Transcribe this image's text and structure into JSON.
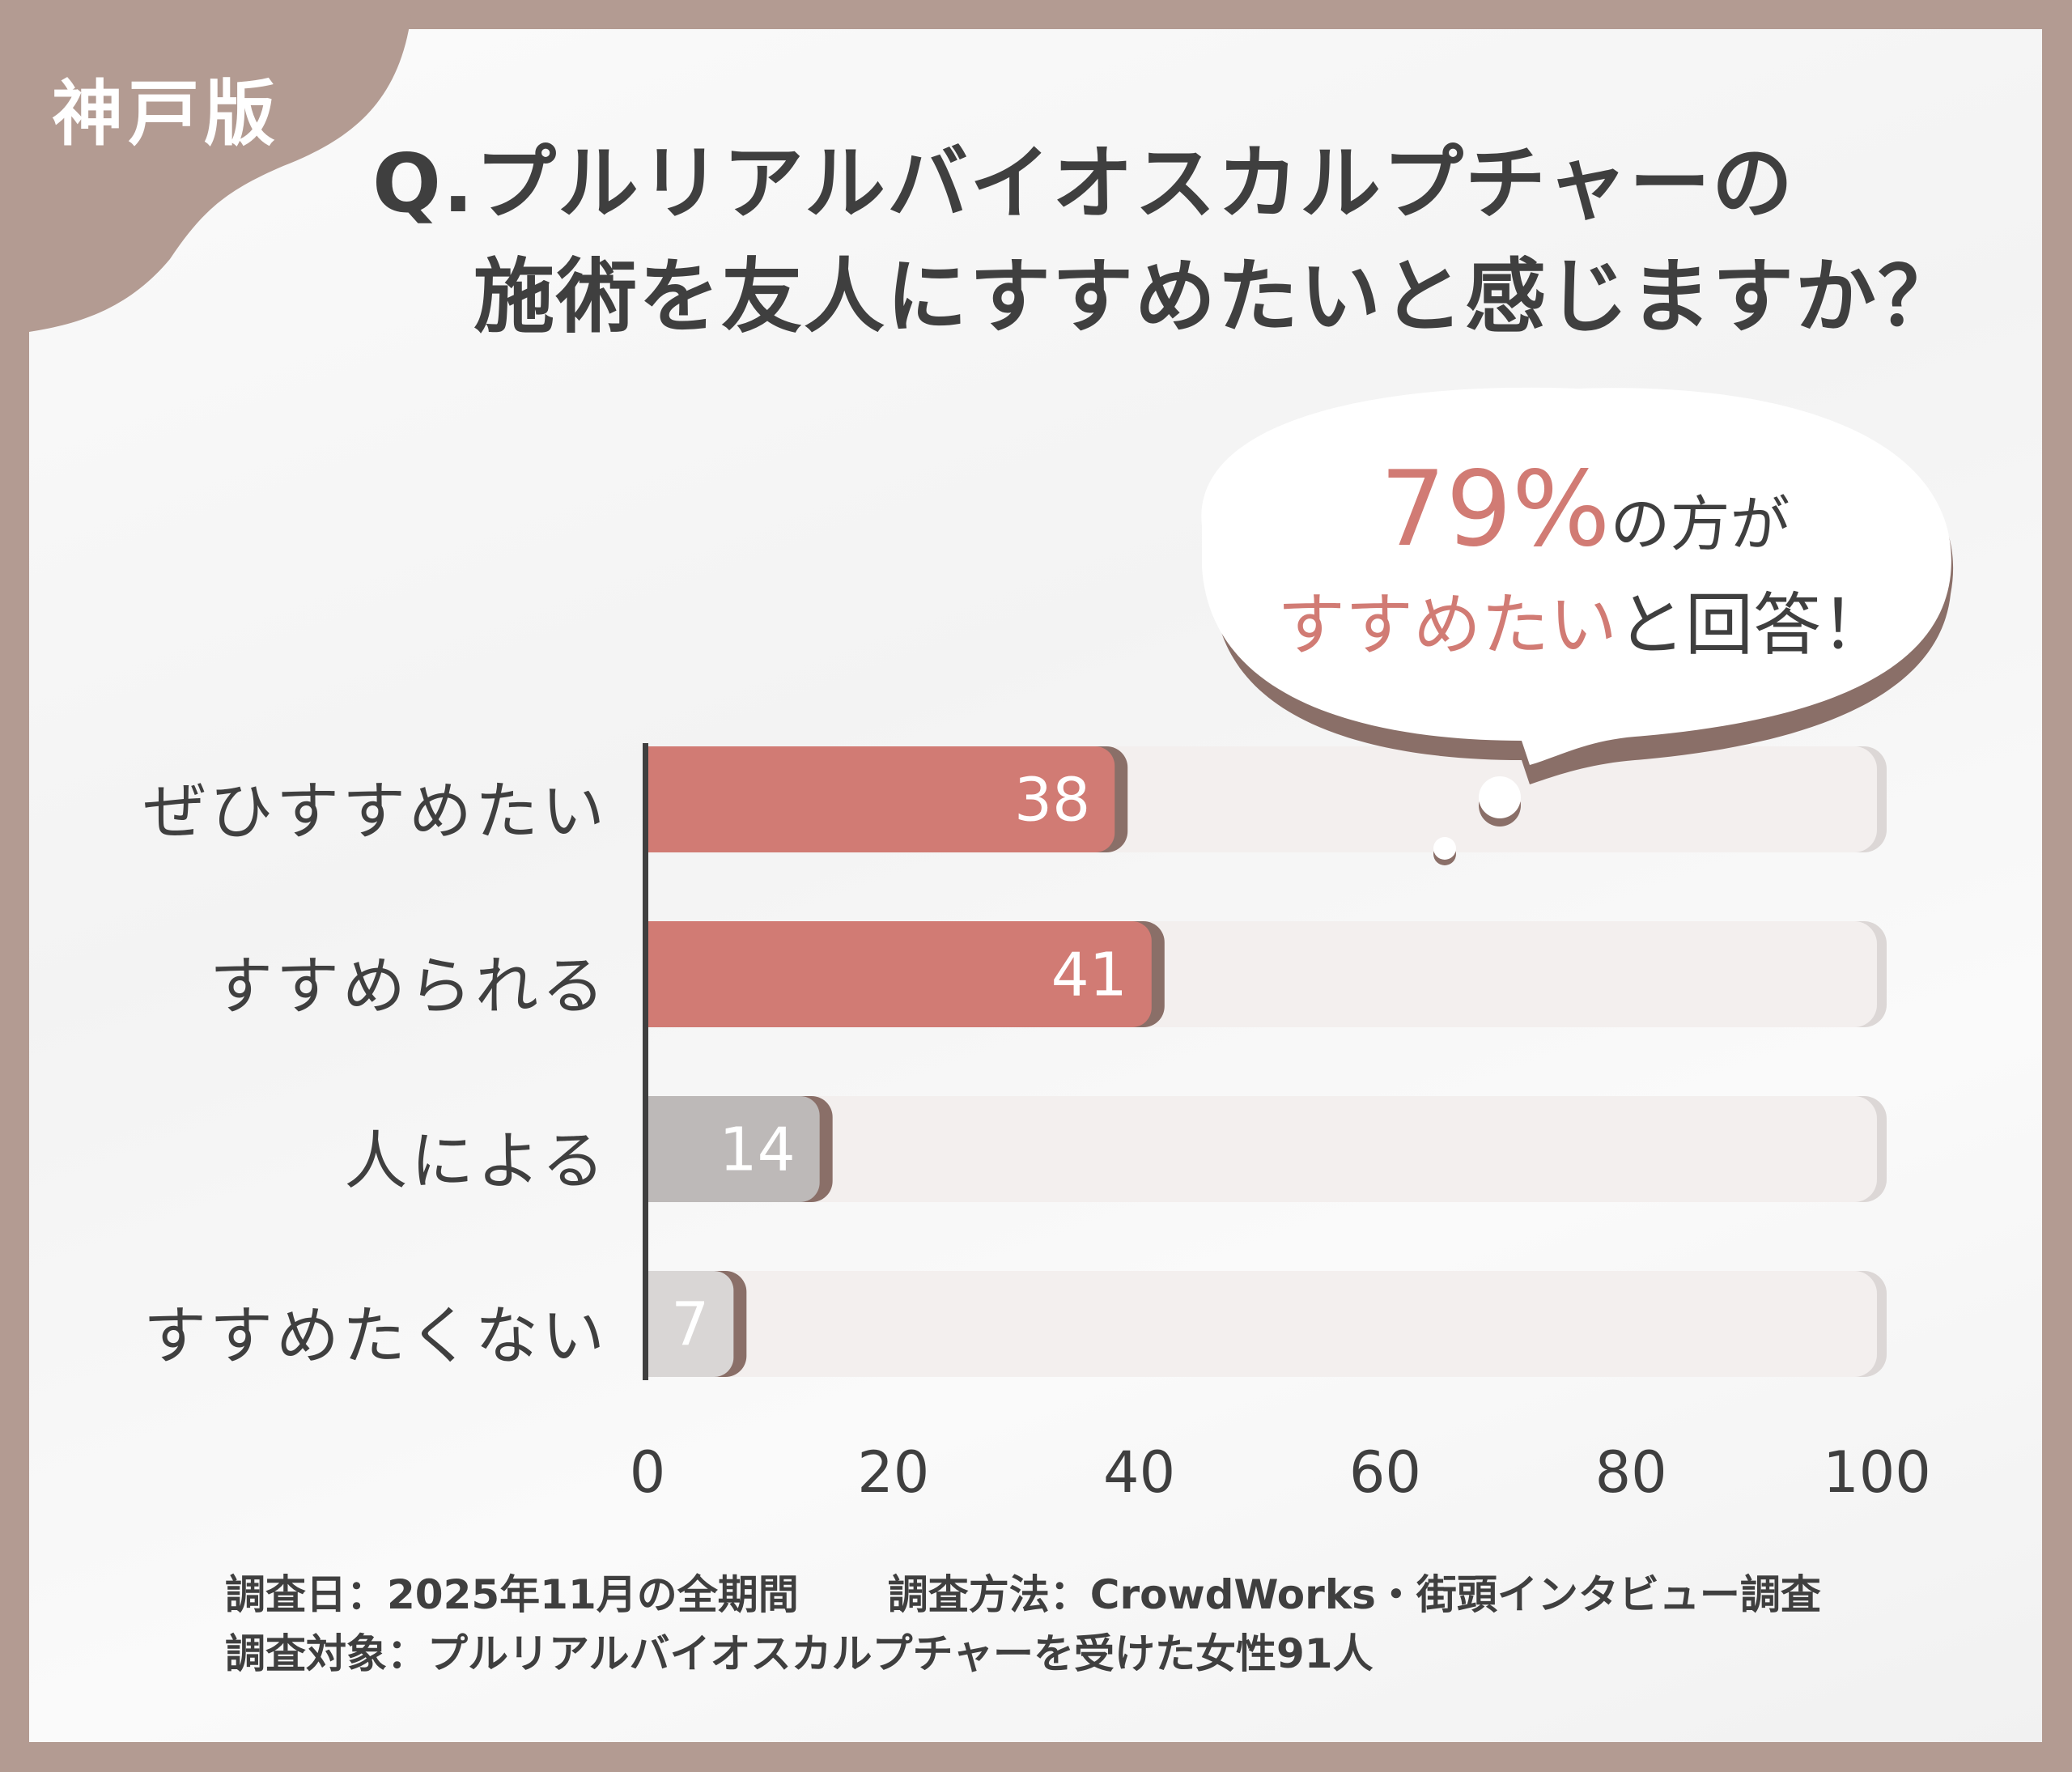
{
  "edition": "神戸版",
  "title": {
    "line1": "Q.プルリアルバイオスカルプチャーの",
    "line2": "施術を友人にすすめたいと感じますか？"
  },
  "callout": {
    "percent": "79%",
    "line1_rest": "の方が",
    "line2_highlight": "すすめたい",
    "line2_rest": "と回答！"
  },
  "chart_data": {
    "type": "bar",
    "orientation": "horizontal",
    "categories": [
      "ぜひすすめたい",
      "すすめられる",
      "人による",
      "すすめたくない"
    ],
    "values": [
      38,
      41,
      14,
      7
    ],
    "value_labels": [
      "38",
      "41",
      "14",
      "7"
    ],
    "xlim": [
      0,
      100
    ],
    "xticks": [
      "0",
      "20",
      "40",
      "60",
      "80",
      "100"
    ],
    "grid": false,
    "colors": [
      "#d17b74",
      "#d17b74",
      "#bdb9b8",
      "#d9d6d5"
    ],
    "track_color": "#f3efee"
  },
  "footer": {
    "date": "調査日：2025年11月の全期間",
    "method": "調査方法：CrowdWorks・街頭インタビュー調査",
    "target": "調査対象：プルリアルバイオスカルプチャーを受けた女性91人"
  },
  "colors": {
    "frame": "#b39b92",
    "accent": "#d17b74",
    "text": "#3f3f3f"
  }
}
